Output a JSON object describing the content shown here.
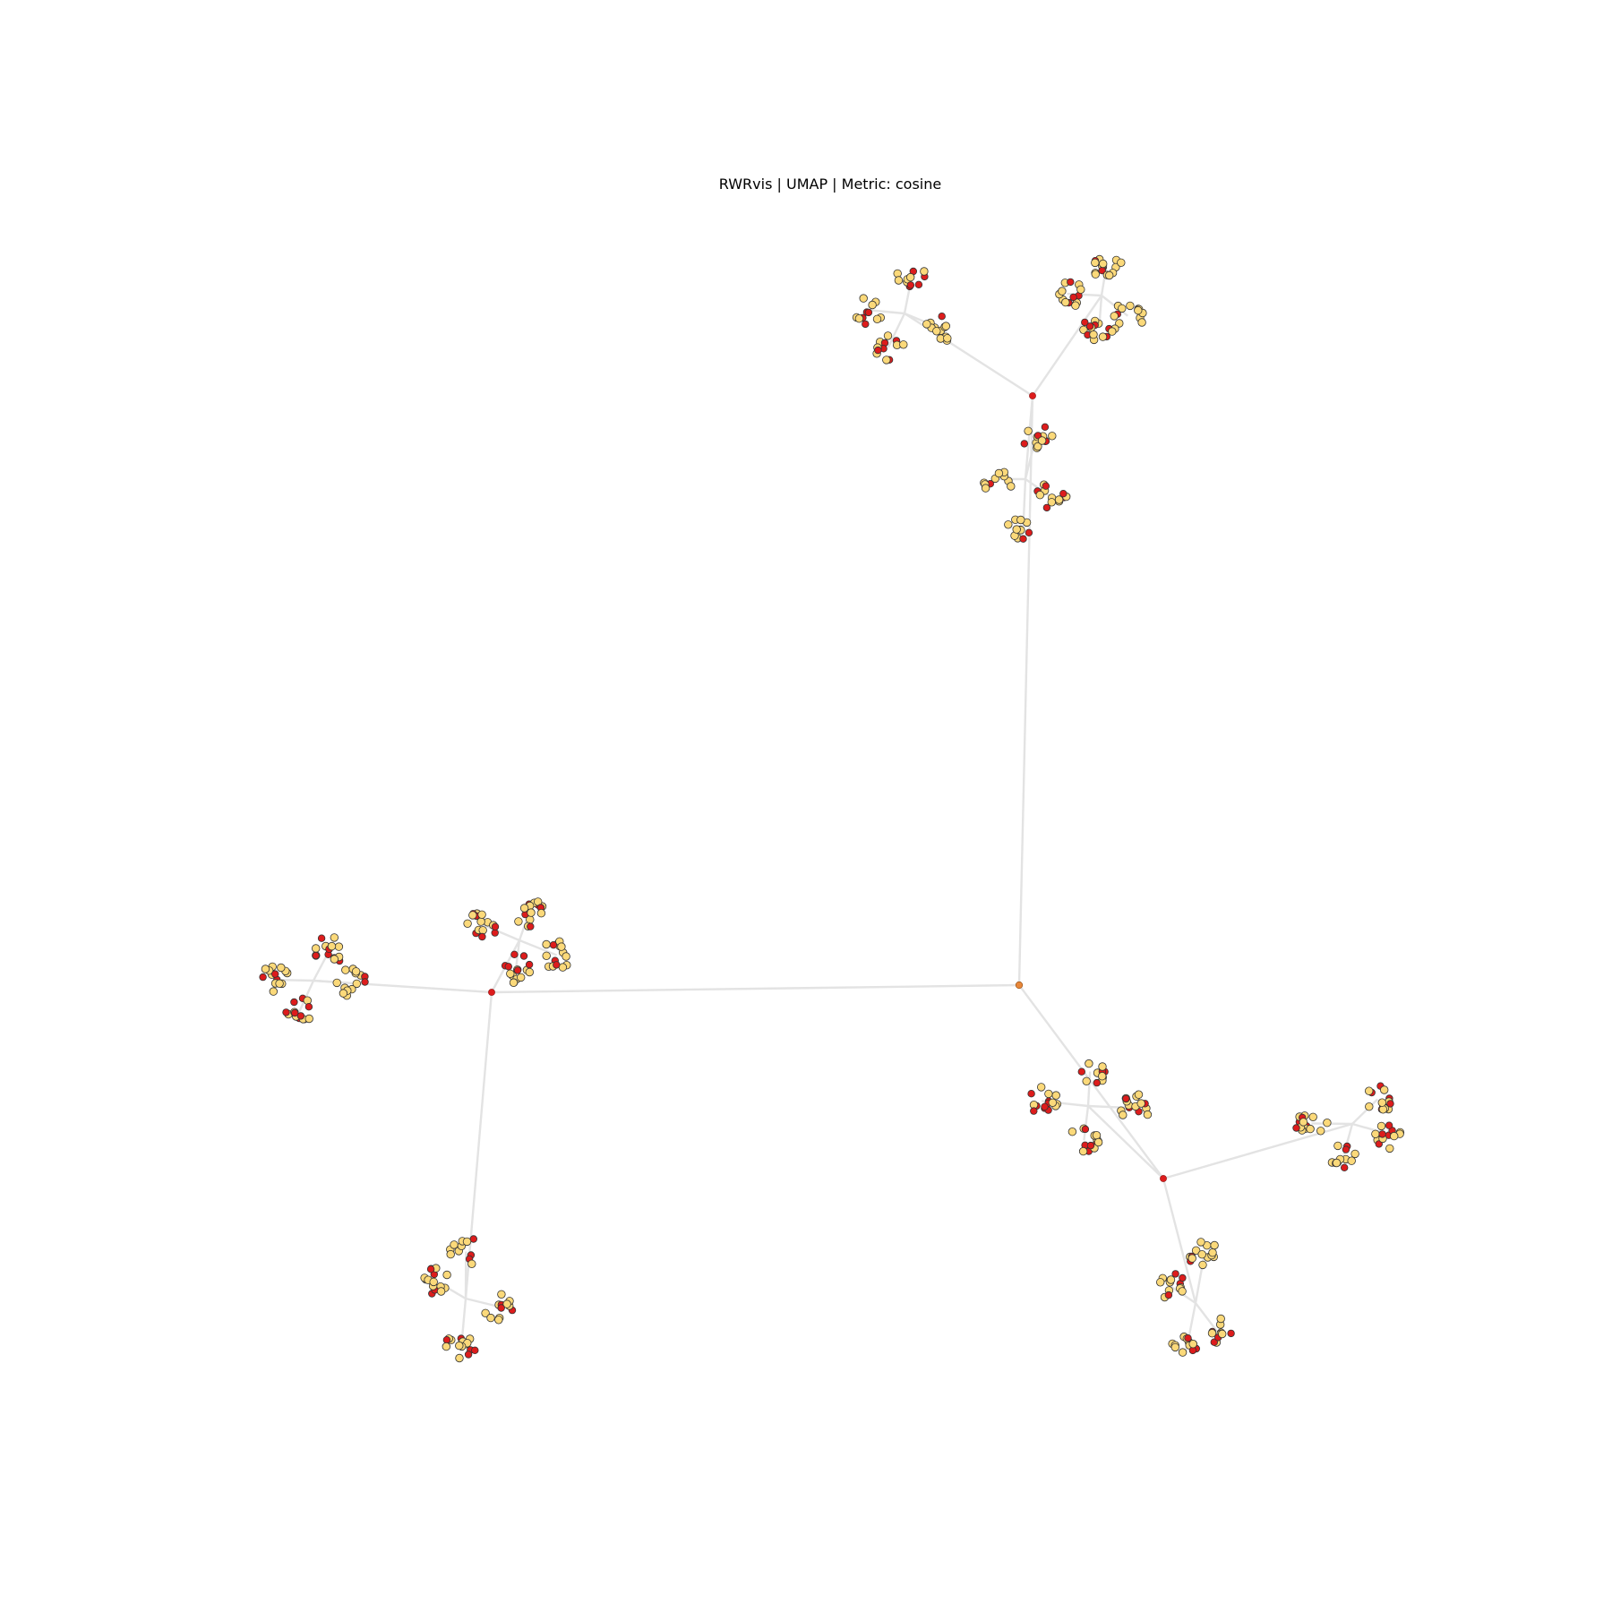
{
  "title": "RWRvis | UMAP | Metric: cosine",
  "colors": {
    "background": "#ffffff",
    "edge": "#e3e3e3",
    "root": "#e8873a",
    "hub": "#dd1c1c",
    "leaf_light": "#fbd97a",
    "leaf_dark": "#dd1c1c",
    "leaf_outline": "#333333"
  },
  "graph": {
    "root": "root",
    "hubs": [
      {
        "id": "hub-top",
        "clusters": [
          "cluster-top-a",
          "cluster-top-b",
          "cluster-top-c"
        ]
      },
      {
        "id": "hub-left",
        "clusters": [
          "cluster-left-a",
          "cluster-left-b",
          "cluster-left-c"
        ]
      },
      {
        "id": "hub-bottom-right",
        "clusters": [
          "cluster-br-a",
          "cluster-br-b",
          "cluster-br-c"
        ]
      }
    ]
  }
}
